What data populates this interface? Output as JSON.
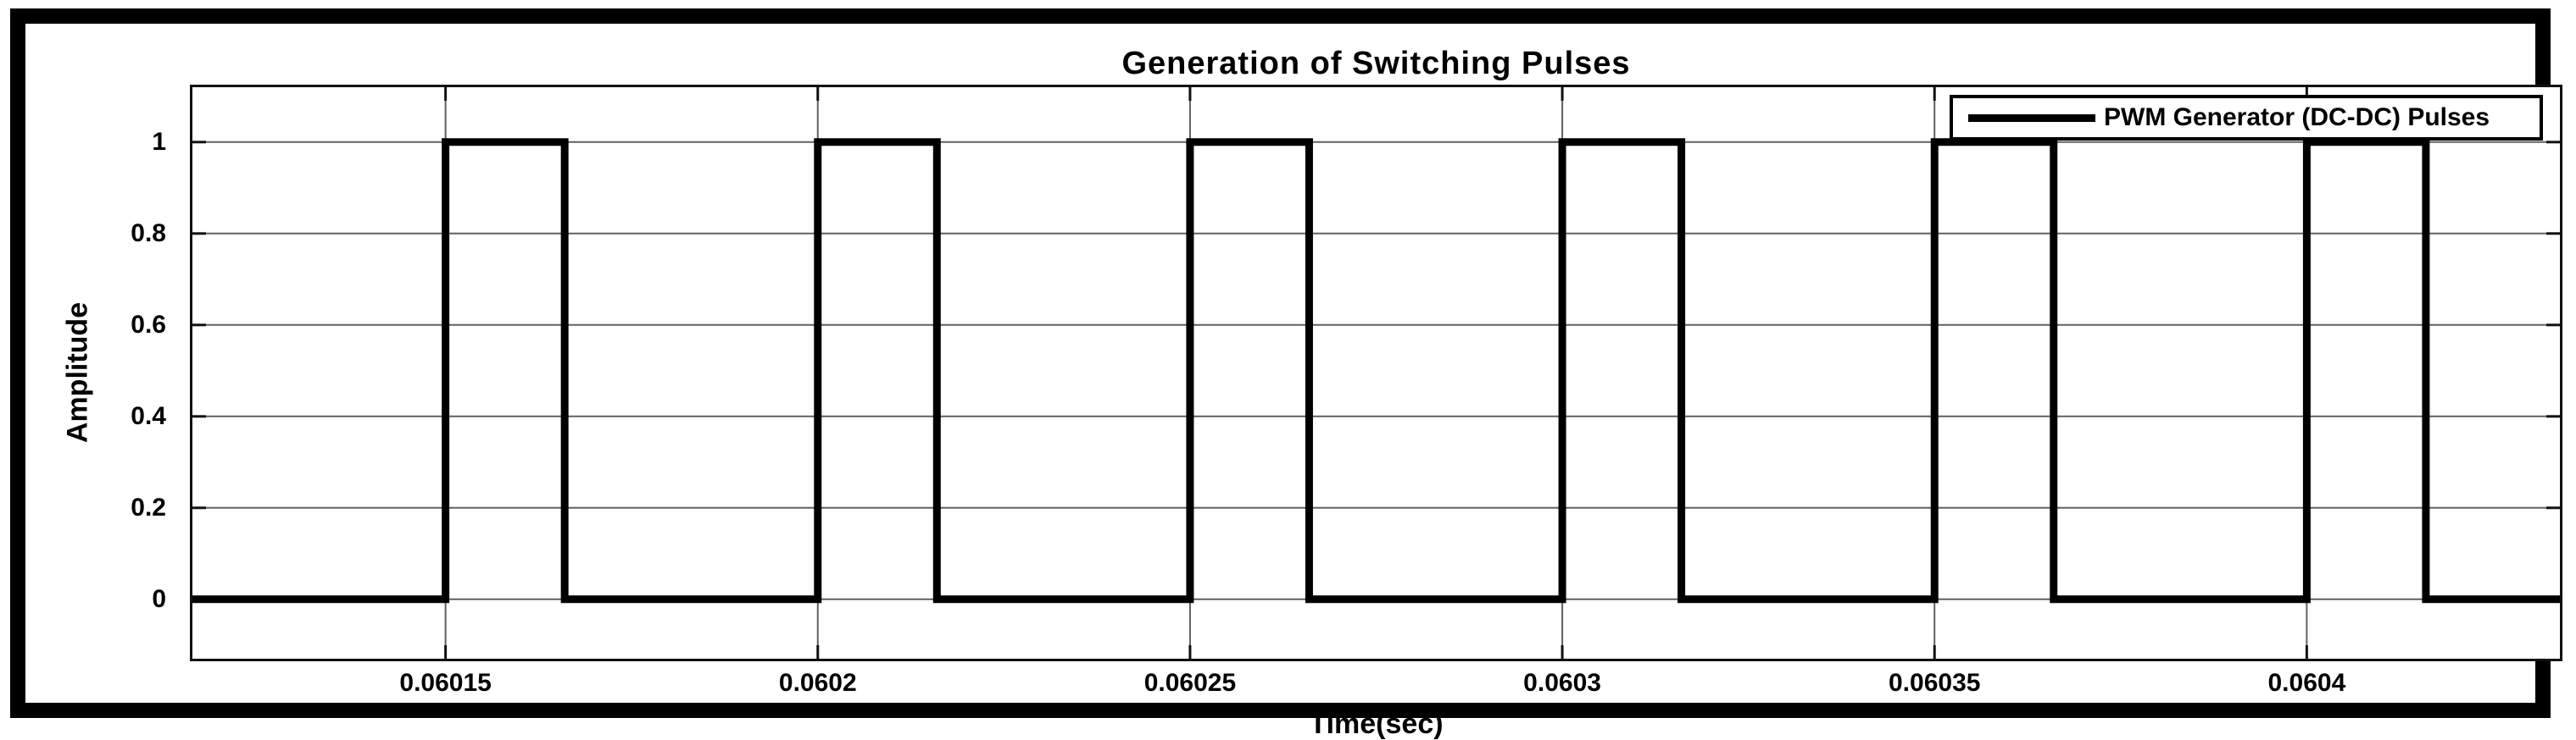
{
  "figure": {
    "title": "Generation of Switching Pulses",
    "xlabel": "Time(sec)",
    "ylabel": "Amplitude",
    "legend_label": "PWM Generator (DC-DC) Pulses"
  },
  "colors": {
    "background": "#ffffff",
    "frame_border": "#000000",
    "axes_border": "#111111",
    "grid": "#606060",
    "trace": "#000000",
    "text": "#000000"
  },
  "chart_data": {
    "type": "line",
    "subtype": "square-pulse-train",
    "title": "Generation of Switching Pulses",
    "xlabel": "Time(sec)",
    "ylabel": "Amplitude",
    "xlim": [
      0.060116,
      0.060434
    ],
    "ylim": [
      -0.13,
      1.12
    ],
    "xticks": [
      0.06015,
      0.0602,
      0.06025,
      0.0603,
      0.06035,
      0.0604
    ],
    "xtick_labels": [
      "0.06015",
      "0.0602",
      "0.06025",
      "0.0603",
      "0.06035",
      "0.0604"
    ],
    "yticks": [
      0,
      0.2,
      0.4,
      0.6,
      0.8,
      1
    ],
    "ytick_labels": [
      "0",
      "0.2",
      "0.4",
      "0.6",
      "0.8",
      "1"
    ],
    "grid": true,
    "legend": {
      "position": "top-right",
      "entries": [
        {
          "label": "PWM Generator (DC-DC) Pulses",
          "color": "#000000",
          "line_style": "solid-thick"
        }
      ]
    },
    "series": [
      {
        "name": "PWM Generator (DC-DC) Pulses",
        "amplitude_low": 0,
        "amplitude_high": 1,
        "period_s": 5e-05,
        "pulse_width_s": 1.6e-05,
        "duty_cycle": 0.32,
        "rising_edges_s": [
          0.06015,
          0.0602,
          0.06025,
          0.0603,
          0.06035,
          0.0604
        ],
        "falling_edges_s": [
          0.060166,
          0.060216,
          0.060266,
          0.060316,
          0.060366,
          0.060416
        ]
      }
    ]
  }
}
